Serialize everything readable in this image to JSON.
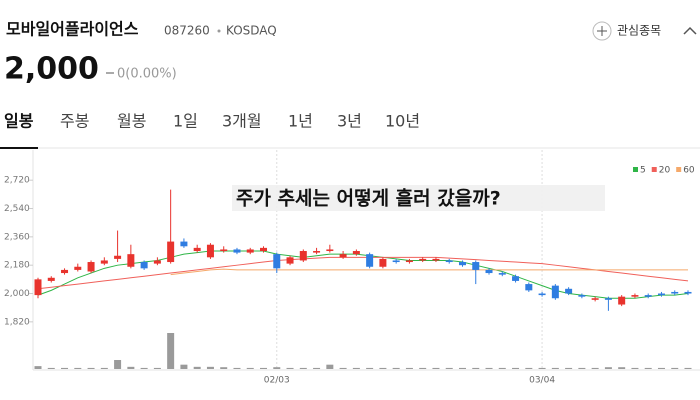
{
  "header": {
    "name": "모바일어플라이언스",
    "code": "087260",
    "market": "KOSDAQ",
    "watch": "관심종목"
  },
  "price": {
    "value": "2,000",
    "change": "0(0.00%)"
  },
  "tabs": [
    "일봉",
    "주봉",
    "월봉",
    "1일",
    "3개월",
    "1년",
    "3년",
    "10년"
  ],
  "chart_data": {
    "type": "candlestick",
    "annotation": "주가 추세는 어떻게 흘러 갔을까?",
    "categories": [
      null,
      null,
      null,
      null,
      null,
      null,
      null,
      null,
      null,
      null,
      null,
      null,
      null,
      null,
      null,
      null,
      null,
      null,
      "02/03",
      null,
      null,
      null,
      null,
      null,
      null,
      null,
      null,
      null,
      null,
      null,
      null,
      null,
      null,
      null,
      null,
      null,
      null,
      null,
      "03/04",
      null,
      null,
      null,
      null,
      null,
      null,
      null,
      null,
      null,
      null,
      null
    ],
    "open": [
      1990,
      2080,
      2130,
      2150,
      2140,
      2190,
      2220,
      2170,
      2200,
      2190,
      2200,
      2330,
      2270,
      2230,
      2270,
      2280,
      2260,
      2270,
      2250,
      2190,
      2210,
      2260,
      2270,
      2230,
      2250,
      2250,
      2170,
      2210,
      2200,
      2210,
      2210,
      2210,
      2200,
      2200,
      2150,
      2130,
      2110,
      2060,
      2000,
      2050,
      2030,
      1990,
      1960,
      1970,
      1930,
      1980,
      1990,
      2000,
      2010,
      2010
    ],
    "high": [
      2100,
      2110,
      2160,
      2190,
      2210,
      2230,
      2400,
      2310,
      2210,
      2230,
      2660,
      2350,
      2310,
      2320,
      2300,
      2290,
      2290,
      2300,
      2260,
      2240,
      2280,
      2290,
      2310,
      2270,
      2280,
      2260,
      2230,
      2220,
      2220,
      2230,
      2230,
      2220,
      2210,
      2210,
      2160,
      2140,
      2120,
      2070,
      2010,
      2060,
      2040,
      2000,
      1980,
      1980,
      1990,
      2000,
      2000,
      2010,
      2020,
      2020
    ],
    "low": [
      1970,
      2070,
      2120,
      2140,
      2130,
      2180,
      2200,
      2160,
      2150,
      2180,
      2190,
      2290,
      2260,
      2220,
      2260,
      2250,
      2250,
      2260,
      2130,
      2180,
      2200,
      2250,
      2260,
      2220,
      2240,
      2160,
      2160,
      2190,
      2190,
      2200,
      2200,
      2190,
      2170,
      2060,
      2120,
      2110,
      2070,
      2010,
      1980,
      1960,
      1990,
      1970,
      1950,
      1890,
      1920,
      1970,
      1970,
      1980,
      1990,
      1990
    ],
    "close": [
      2090,
      2100,
      2150,
      2170,
      2200,
      2210,
      2240,
      2250,
      2160,
      2210,
      2330,
      2300,
      2290,
      2310,
      2280,
      2260,
      2280,
      2290,
      2160,
      2230,
      2270,
      2270,
      2280,
      2250,
      2270,
      2170,
      2220,
      2200,
      2210,
      2220,
      2220,
      2200,
      2180,
      2150,
      2130,
      2120,
      2080,
      2020,
      1990,
      1970,
      2000,
      1980,
      1970,
      1960,
      1980,
      1990,
      1980,
      1990,
      2000,
      2000
    ],
    "up_color": "#e8332d",
    "down_color": "#2f7de1",
    "series": [
      {
        "name": "5",
        "color": "#2fb547",
        "values": [
          1990,
          2020,
          2060,
          2100,
          2130,
          2160,
          2180,
          2190,
          2200,
          2210,
          2230,
          2250,
          2260,
          2270,
          2270,
          2270,
          2270,
          2270,
          2250,
          2240,
          2230,
          2240,
          2250,
          2250,
          2250,
          2240,
          2230,
          2220,
          2210,
          2210,
          2210,
          2210,
          2200,
          2180,
          2160,
          2140,
          2110,
          2080,
          2050,
          2020,
          2000,
          1990,
          1980,
          1970,
          1970,
          1970,
          1980,
          1990,
          1990,
          2000
        ]
      },
      {
        "name": "20",
        "color": "#f0605a",
        "values": [
          2030,
          2040,
          2050,
          2060,
          2070,
          2080,
          2090,
          2100,
          2110,
          2120,
          2130,
          2140,
          2150,
          2160,
          2170,
          2180,
          2190,
          2200,
          2210,
          2215,
          2220,
          2225,
          2230,
          2230,
          2230,
          2230,
          2230,
          2230,
          2230,
          2230,
          2230,
          2225,
          2220,
          2215,
          2210,
          2205,
          2200,
          2195,
          2190,
          2180,
          2170,
          2160,
          2150,
          2140,
          2130,
          2120,
          2110,
          2100,
          2090,
          2080
        ]
      },
      {
        "name": "60",
        "color": "#f5a96a",
        "values": [
          null,
          null,
          null,
          null,
          null,
          null,
          null,
          null,
          null,
          null,
          2120,
          2130,
          2140,
          2150,
          2155,
          2150,
          2150,
          2150,
          2150,
          2150,
          2150,
          2150,
          2150,
          2150,
          2150,
          2150,
          2150,
          2150,
          2150,
          2150,
          2150,
          2150,
          2150,
          2150,
          2150,
          2150,
          2150,
          2150,
          2150,
          2150,
          2150,
          2150,
          2150,
          2150,
          2150,
          2150,
          2150,
          2150,
          2150,
          2150
        ]
      }
    ],
    "volume": [
      8,
      3,
      3,
      3,
      3,
      3,
      25,
      6,
      3,
      3,
      100,
      12,
      6,
      6,
      5,
      3,
      3,
      3,
      5,
      3,
      3,
      3,
      12,
      3,
      3,
      3,
      3,
      3,
      3,
      3,
      3,
      3,
      3,
      3,
      3,
      3,
      3,
      3,
      3,
      3,
      3,
      3,
      3,
      5,
      5,
      3,
      3,
      3,
      3,
      3
    ],
    "volume_color": "#9a9a9a",
    "ylim": [
      1800,
      2880
    ],
    "yticks": [
      {
        "value": 1820,
        "label": "1,820"
      },
      {
        "value": 2000,
        "label": "2,000"
      },
      {
        "value": 2180,
        "label": "2,180"
      },
      {
        "value": 2360,
        "label": "2,360"
      },
      {
        "value": 2540,
        "label": "2,540"
      },
      {
        "value": 2720,
        "label": "2,720"
      }
    ]
  }
}
